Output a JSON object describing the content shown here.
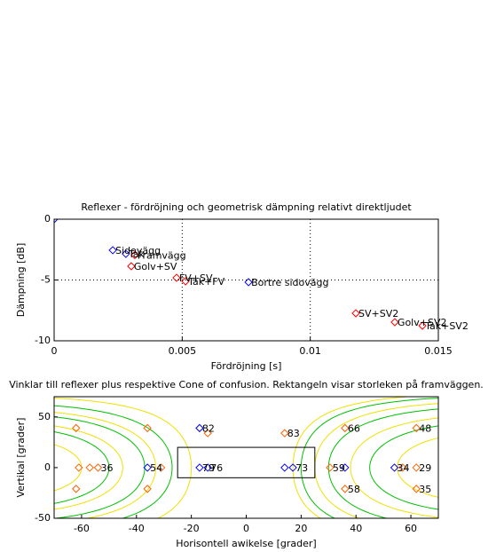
{
  "chart_data": [
    {
      "type": "scatter",
      "title": "Reflexer - fördröjning och geometrisk dämpning relativt direktljudet",
      "x_label": "Fördröjning [s]",
      "y_label": "Dämpning [dB]",
      "xlim": [
        0,
        0.015
      ],
      "ylim": [
        -10,
        0
      ],
      "xticks": [
        0,
        0.005,
        0.01,
        0.015
      ],
      "yticks": [
        0,
        -5,
        -10
      ],
      "grid": true,
      "points": [
        {
          "x": 0,
          "y": 0,
          "color": "#0000ff"
        },
        {
          "x": 0.00229,
          "y": -2.55,
          "color": "#0000ff",
          "label": "Sidovägg"
        },
        {
          "x": 0.0028,
          "y": -2.85,
          "color": "#0000ff",
          "label": "Tak"
        },
        {
          "x": 0.00315,
          "y": -2.95,
          "color": "#ff0000",
          "label": "Framvägg"
        },
        {
          "x": 0.00301,
          "y": -3.87,
          "color": "#ff0000",
          "label": "Golv+SV"
        },
        {
          "x": 0.00478,
          "y": -4.82,
          "color": "#ff0000",
          "label": "FV+SV"
        },
        {
          "x": 0.00513,
          "y": -5.11,
          "color": "#ff0000",
          "label": "Tak+FV"
        },
        {
          "x": 0.00759,
          "y": -5.18,
          "color": "#0000ff",
          "label": "Bortre sidovägg"
        },
        {
          "x": 0.01178,
          "y": -7.74,
          "color": "#ff0000",
          "label": "SV+SV2"
        },
        {
          "x": 0.0133,
          "y": -8.47,
          "color": "#ff0000",
          "label": "Golv+SV2"
        },
        {
          "x": 0.01438,
          "y": -8.76,
          "color": "#ff0000",
          "label": "Tak+SV2"
        }
      ]
    },
    {
      "type": "scatter",
      "title": "Vinklar till reflexer plus respektive Cone of confusion. Rektangeln visar storleken på framväggen.",
      "x_label": "Horisontell awikelse [grader]",
      "y_label": "Vertikal [grader]",
      "xlim": [
        -70,
        70
      ],
      "ylim": [
        -50,
        70
      ],
      "xticks": [
        -60,
        -40,
        -20,
        0,
        20,
        40,
        60
      ],
      "yticks": [
        -50,
        0,
        50
      ],
      "grid": false,
      "rect": {
        "x": [
          -25,
          25
        ],
        "y": [
          -10,
          20
        ]
      },
      "cones": [
        {
          "lateral": -27,
          "color": "#00c000"
        },
        {
          "lateral": -37,
          "color": "#00c000"
        },
        {
          "lateral": -50,
          "color": "#00c000"
        },
        {
          "lateral": 20,
          "color": "#00c000"
        },
        {
          "lateral": 30,
          "color": "#00c000"
        },
        {
          "lateral": 45,
          "color": "#00c000"
        },
        {
          "lateral": -20,
          "color": "#f0e000"
        },
        {
          "lateral": -33,
          "color": "#f0e000"
        },
        {
          "lateral": -45,
          "color": "#f0e000"
        },
        {
          "lateral": -60,
          "color": "#f0e000"
        },
        {
          "lateral": 17,
          "color": "#f0e000"
        },
        {
          "lateral": 25,
          "color": "#f0e000"
        },
        {
          "lateral": 38,
          "color": "#f0e000"
        },
        {
          "lateral": 55,
          "color": "#f0e000"
        }
      ],
      "points": [
        {
          "x": -62,
          "y": 39,
          "color": "#ff6000"
        },
        {
          "x": -62,
          "y": -21,
          "color": "#ff6000"
        },
        {
          "x": -61,
          "y": 0,
          "color": "#ff6000"
        },
        {
          "x": -57,
          "y": 0,
          "color": "#ff6000"
        },
        {
          "x": -54,
          "y": 0,
          "color": "#ff6000",
          "label": 36
        },
        {
          "x": -36,
          "y": 39,
          "color": "#ff6000"
        },
        {
          "x": -36,
          "y": -21,
          "color": "#ff6000"
        },
        {
          "x": -36,
          "y": 0,
          "color": "#0000ff",
          "label": 54
        },
        {
          "x": -31,
          "y": 0,
          "color": "#ff6000"
        },
        {
          "x": -17,
          "y": 39,
          "color": "#0000ff",
          "label": 82
        },
        {
          "x": -14,
          "y": 34,
          "color": "#ff6000"
        },
        {
          "x": -17,
          "y": 0,
          "color": "#0000ff",
          "label": 79
        },
        {
          "x": -14,
          "y": 0,
          "color": "#0000ff",
          "label": 76
        },
        {
          "x": 14,
          "y": 0,
          "color": "#0000ff"
        },
        {
          "x": 17,
          "y": 0,
          "color": "#0000ff",
          "label": 73
        },
        {
          "x": 14,
          "y": 34,
          "color": "#ff6000",
          "label": 83
        },
        {
          "x": 30.5,
          "y": 0,
          "color": "#ff6000",
          "label": 59
        },
        {
          "x": 36,
          "y": 0,
          "color": "#0000ff"
        },
        {
          "x": 36,
          "y": 39,
          "color": "#ff6000",
          "label": 66
        },
        {
          "x": 36,
          "y": -21,
          "color": "#ff6000",
          "label": 58
        },
        {
          "x": 54,
          "y": 0,
          "color": "#0000ff",
          "label": 34
        },
        {
          "x": 57,
          "y": 0,
          "color": "#ff6000"
        },
        {
          "x": 62,
          "y": 0,
          "color": "#ff6000",
          "label": 29
        },
        {
          "x": 62,
          "y": 39,
          "color": "#ff6000",
          "label": 48
        },
        {
          "x": 62,
          "y": -21,
          "color": "#ff6000",
          "label": 35
        }
      ]
    }
  ]
}
